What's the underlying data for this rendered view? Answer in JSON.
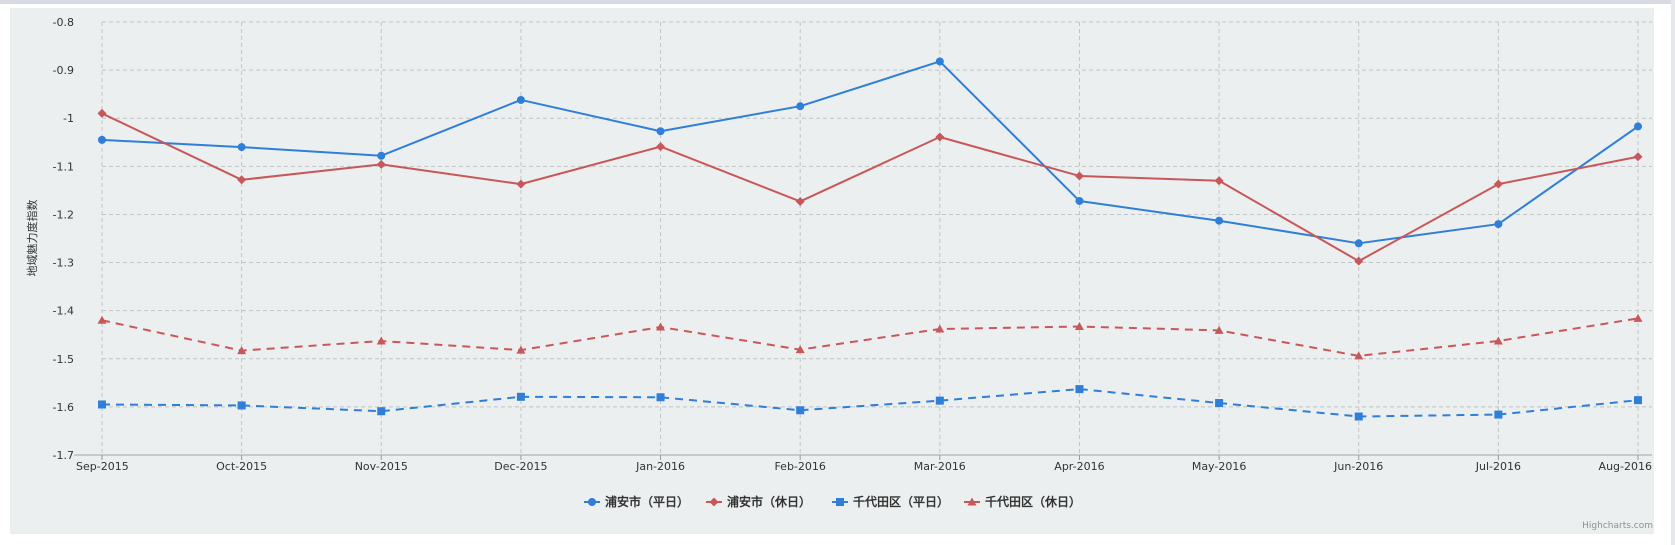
{
  "chart_data": {
    "type": "line",
    "title": "",
    "xlabel": "",
    "ylabel": "地域魅力度指数",
    "categories": [
      "Sep-2015",
      "Oct-2015",
      "Nov-2015",
      "Dec-2015",
      "Jan-2016",
      "Feb-2016",
      "Mar-2016",
      "Apr-2016",
      "May-2016",
      "Jun-2016",
      "Jul-2016",
      "Aug-2016"
    ],
    "ylim": [
      -1.7,
      -0.8
    ],
    "yticks": [
      "-0.8",
      "-0.9",
      "-1",
      "-1.1",
      "-1.2",
      "-1.3",
      "-1.4",
      "-1.5",
      "-1.6",
      "-1.7"
    ],
    "grid": true,
    "legend_position": "bottom-center",
    "series": [
      {
        "name": "浦安市（平日）",
        "color": "#2f7ed8",
        "marker": "circle",
        "dash": "solid",
        "values": [
          -1.045,
          -1.06,
          -1.078,
          -0.962,
          -1.027,
          -0.975,
          -0.882,
          -1.172,
          -1.213,
          -1.26,
          -1.22,
          -1.017
        ]
      },
      {
        "name": "浦安市（休日）",
        "color": "#c8575a",
        "marker": "diamond",
        "dash": "solid",
        "values": [
          -0.99,
          -1.128,
          -1.096,
          -1.137,
          -1.059,
          -1.173,
          -1.039,
          -1.12,
          -1.13,
          -1.297,
          -1.137,
          -1.08
        ]
      },
      {
        "name": "千代田区（平日）",
        "color": "#2f7ed8",
        "marker": "square",
        "dash": "dashed",
        "values": [
          -1.595,
          -1.597,
          -1.609,
          -1.579,
          -1.58,
          -1.607,
          -1.587,
          -1.563,
          -1.592,
          -1.62,
          -1.616,
          -1.586
        ]
      },
      {
        "name": "千代田区（休日）",
        "color": "#c8575a",
        "marker": "triangle",
        "dash": "dashed",
        "values": [
          -1.42,
          -1.483,
          -1.463,
          -1.482,
          -1.434,
          -1.481,
          -1.438,
          -1.433,
          -1.441,
          -1.494,
          -1.463,
          -1.416
        ]
      }
    ]
  },
  "credits": "Highcharts.com",
  "colors": {
    "panel_bg": "#ecefef",
    "grid": "#c0c4c4"
  }
}
